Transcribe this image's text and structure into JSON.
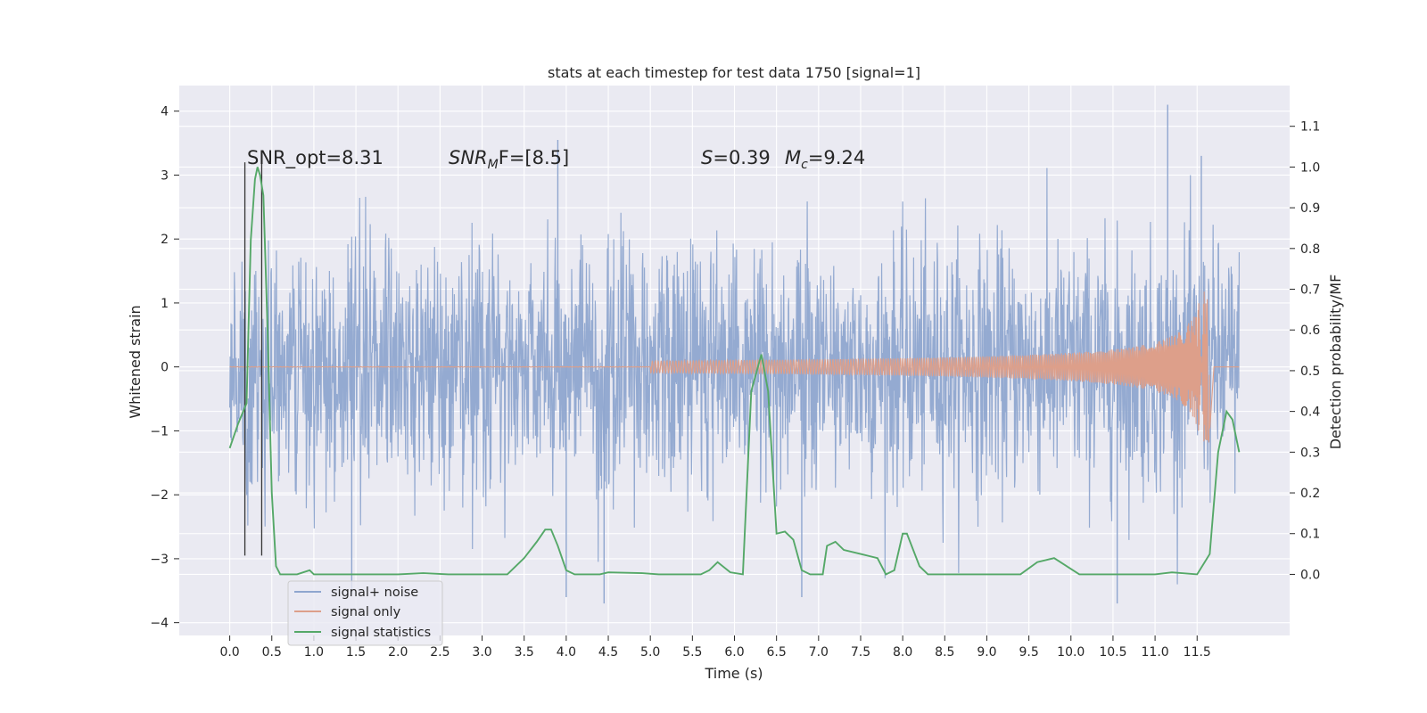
{
  "chart_data": {
    "type": "line",
    "title": "stats at each timestep for test data 1750 [signal=1]",
    "xlabel": "Time (s)",
    "ylabel_left": "Whitened strain",
    "ylabel_right": "Detection probability/MF",
    "xlim": [
      -0.6,
      12.6
    ],
    "ylim_left": [
      -4.2,
      4.4
    ],
    "ylim_right": [
      -0.15,
      1.2
    ],
    "x_ticks": [
      "0.0",
      "0.5",
      "1.0",
      "1.5",
      "2.0",
      "2.5",
      "3.0",
      "3.5",
      "4.0",
      "4.5",
      "5.0",
      "5.5",
      "6.0",
      "6.5",
      "7.0",
      "7.5",
      "8.0",
      "8.5",
      "9.0",
      "9.5",
      "10.0",
      "10.5",
      "11.0",
      "11.5"
    ],
    "y_ticks_left": [
      "4",
      "3",
      "2",
      "1",
      "0",
      "−1",
      "−2",
      "−3",
      "−4"
    ],
    "y_ticks_right": [
      "1.1",
      "1.0",
      "0.9",
      "0.8",
      "0.7",
      "0.6",
      "0.5",
      "0.4",
      "0.3",
      "0.2",
      "0.1",
      "0.0"
    ],
    "grid": true,
    "legend_position": "lower-left",
    "annotations": {
      "snr_opt": "SNR_opt=8.31",
      "snr_mf_main": "SNR",
      "snr_mf_sub": "M",
      "snr_mf_tail": "F=[8.5]",
      "s_main": "S",
      "s_tail": "=0.39",
      "mc_main": "M",
      "mc_sub": "c",
      "mc_tail": "=9.24"
    },
    "vertical_lines_x": [
      0.18,
      0.38
    ],
    "series": [
      {
        "name": "signal+ noise",
        "color": "#8fa6cf",
        "axis": "left",
        "x_range": [
          0.0,
          12.0
        ],
        "typical_range": [
          -1.4,
          1.4
        ],
        "peak_max": 4.1,
        "peak_min": -3.7
      },
      {
        "name": "signal only",
        "color": "#dd9f8a",
        "axis": "left",
        "x_range": [
          0.0,
          12.0
        ],
        "chirp_peak_x": 11.65,
        "chirp_peak_amplitude": 1.2
      },
      {
        "name": "signal statistics",
        "color": "#55a868",
        "axis": "right",
        "points": [
          [
            0.0,
            0.31
          ],
          [
            0.1,
            0.37
          ],
          [
            0.2,
            0.42
          ],
          [
            0.25,
            0.82
          ],
          [
            0.3,
            0.97
          ],
          [
            0.33,
            1.0
          ],
          [
            0.36,
            0.98
          ],
          [
            0.4,
            0.93
          ],
          [
            0.45,
            0.6
          ],
          [
            0.5,
            0.2
          ],
          [
            0.55,
            0.02
          ],
          [
            0.6,
            0.0
          ],
          [
            0.8,
            0.0
          ],
          [
            0.95,
            0.01
          ],
          [
            1.0,
            0.0
          ],
          [
            1.2,
            0.0
          ],
          [
            2.0,
            0.0
          ],
          [
            2.3,
            0.003
          ],
          [
            2.6,
            0.0
          ],
          [
            3.3,
            0.0
          ],
          [
            3.5,
            0.04
          ],
          [
            3.65,
            0.08
          ],
          [
            3.75,
            0.11
          ],
          [
            3.82,
            0.11
          ],
          [
            3.9,
            0.07
          ],
          [
            4.0,
            0.01
          ],
          [
            4.1,
            0.0
          ],
          [
            4.4,
            0.0
          ],
          [
            4.5,
            0.005
          ],
          [
            4.9,
            0.003
          ],
          [
            5.1,
            0.0
          ],
          [
            5.6,
            0.0
          ],
          [
            5.7,
            0.01
          ],
          [
            5.8,
            0.03
          ],
          [
            5.95,
            0.005
          ],
          [
            6.1,
            0.0
          ],
          [
            6.2,
            0.45
          ],
          [
            6.32,
            0.54
          ],
          [
            6.4,
            0.45
          ],
          [
            6.5,
            0.1
          ],
          [
            6.6,
            0.105
          ],
          [
            6.7,
            0.085
          ],
          [
            6.8,
            0.01
          ],
          [
            6.9,
            0.0
          ],
          [
            7.05,
            0.0
          ],
          [
            7.1,
            0.07
          ],
          [
            7.2,
            0.08
          ],
          [
            7.3,
            0.06
          ],
          [
            7.5,
            0.05
          ],
          [
            7.6,
            0.045
          ],
          [
            7.7,
            0.04
          ],
          [
            7.8,
            0.0
          ],
          [
            7.9,
            0.01
          ],
          [
            8.0,
            0.1
          ],
          [
            8.05,
            0.1
          ],
          [
            8.2,
            0.02
          ],
          [
            8.3,
            0.0
          ],
          [
            9.4,
            0.0
          ],
          [
            9.6,
            0.03
          ],
          [
            9.8,
            0.04
          ],
          [
            9.95,
            0.02
          ],
          [
            10.1,
            0.0
          ],
          [
            11.0,
            0.0
          ],
          [
            11.2,
            0.005
          ],
          [
            11.5,
            0.0
          ],
          [
            11.65,
            0.05
          ],
          [
            11.75,
            0.3
          ],
          [
            11.85,
            0.4
          ],
          [
            11.92,
            0.38
          ],
          [
            12.0,
            0.3
          ]
        ]
      }
    ]
  }
}
